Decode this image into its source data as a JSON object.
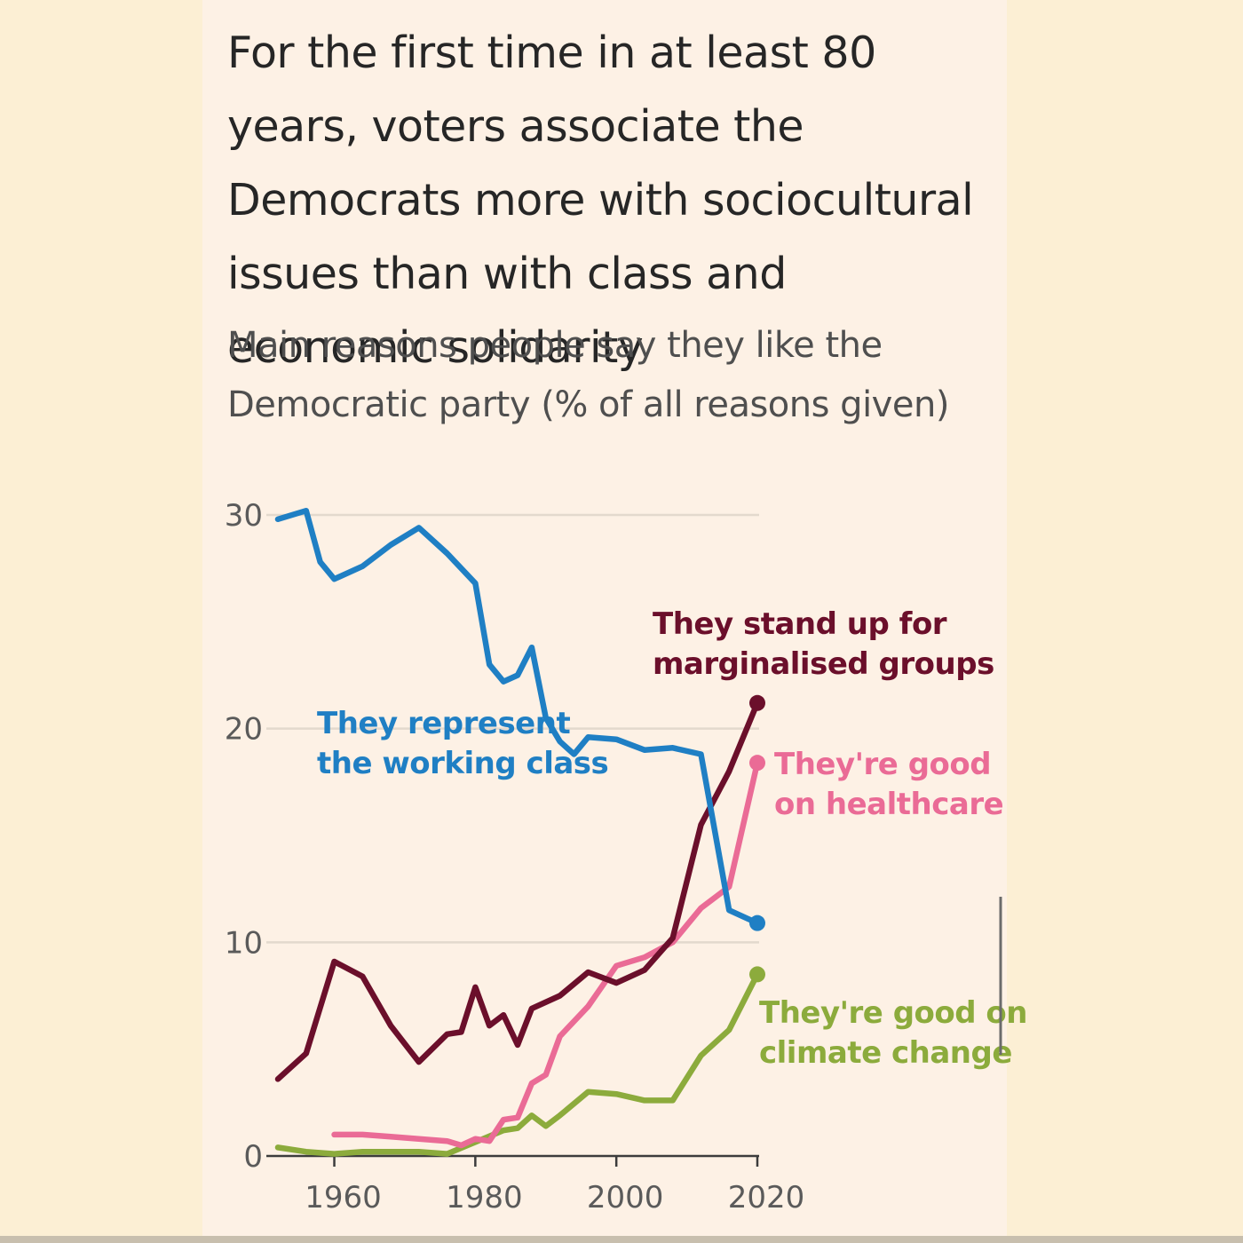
{
  "title": "For the first time in at least 80 years, voters associate the Democrats more with sociocultural issues than with class and economic solidarity",
  "subtitle": "Main reasons people say they like the Democratic party (% of all reasons given)",
  "colors": {
    "working_class": "#1f7fc4",
    "marginalised": "#6b0f2b",
    "healthcare": "#ea6b96",
    "climate": "#8cab3c",
    "grid": "#e3d9cd",
    "background": "#fdf1e5",
    "page": "#fcefd4"
  },
  "chart_data": {
    "type": "line",
    "ylim": [
      0,
      30
    ],
    "xlim": [
      1952,
      2020
    ],
    "yticks": [
      0,
      10,
      20,
      30
    ],
    "xticks": [
      1960,
      1980,
      2000,
      2020
    ],
    "grid": true,
    "legend": "direct labels at line ends",
    "series": [
      {
        "key": "working_class",
        "name": "They represent the working class",
        "x": [
          1952,
          1956,
          1958,
          1960,
          1964,
          1968,
          1972,
          1976,
          1980,
          1982,
          1984,
          1986,
          1988,
          1990,
          1992,
          1994,
          1996,
          2000,
          2004,
          2008,
          2012,
          2016,
          2020
        ],
        "y": [
          29.8,
          30.2,
          27.8,
          27.0,
          27.6,
          28.6,
          29.4,
          28.2,
          26.8,
          23.0,
          22.2,
          22.5,
          23.8,
          20.5,
          19.4,
          18.8,
          19.6,
          19.5,
          19.0,
          19.1,
          18.8,
          11.5,
          10.9
        ]
      },
      {
        "key": "marginalised",
        "name": "They stand up for marginalised groups",
        "x": [
          1952,
          1956,
          1960,
          1964,
          1968,
          1972,
          1976,
          1978,
          1980,
          1982,
          1984,
          1986,
          1988,
          1992,
          1996,
          2000,
          2004,
          2008,
          2012,
          2016,
          2020
        ],
        "y": [
          3.6,
          4.8,
          9.1,
          8.4,
          6.1,
          4.4,
          5.7,
          5.8,
          7.9,
          6.1,
          6.6,
          5.2,
          6.9,
          7.5,
          8.6,
          8.1,
          8.7,
          10.2,
          15.5,
          18.0,
          21.2
        ]
      },
      {
        "key": "healthcare",
        "name": "They're good on healthcare",
        "x": [
          1960,
          1964,
          1968,
          1972,
          1976,
          1978,
          1980,
          1982,
          1984,
          1986,
          1988,
          1990,
          1992,
          1996,
          2000,
          2004,
          2008,
          2012,
          2016,
          2020
        ],
        "y": [
          1.0,
          1.0,
          0.9,
          0.8,
          0.7,
          0.5,
          0.8,
          0.7,
          1.7,
          1.8,
          3.4,
          3.8,
          5.6,
          7.0,
          8.9,
          9.3,
          10.0,
          11.6,
          12.6,
          18.4
        ]
      },
      {
        "key": "climate",
        "name": "They're good on climate change",
        "x": [
          1952,
          1956,
          1960,
          1964,
          1968,
          1972,
          1976,
          1984,
          1986,
          1988,
          1990,
          1992,
          1996,
          2000,
          2004,
          2008,
          2012,
          2016,
          2020
        ],
        "y": [
          0.4,
          0.2,
          0.1,
          0.2,
          0.2,
          0.2,
          0.1,
          1.2,
          1.3,
          1.9,
          1.4,
          1.9,
          3.0,
          2.9,
          2.6,
          2.6,
          4.7,
          5.9,
          8.5
        ]
      }
    ],
    "labels": {
      "working_class": [
        "They represent",
        "the working class"
      ],
      "marginalised": [
        "They stand up for",
        "marginalised groups"
      ],
      "healthcare": [
        "They're good",
        "on healthcare"
      ],
      "climate": [
        "They're good on",
        "climate change"
      ]
    }
  }
}
